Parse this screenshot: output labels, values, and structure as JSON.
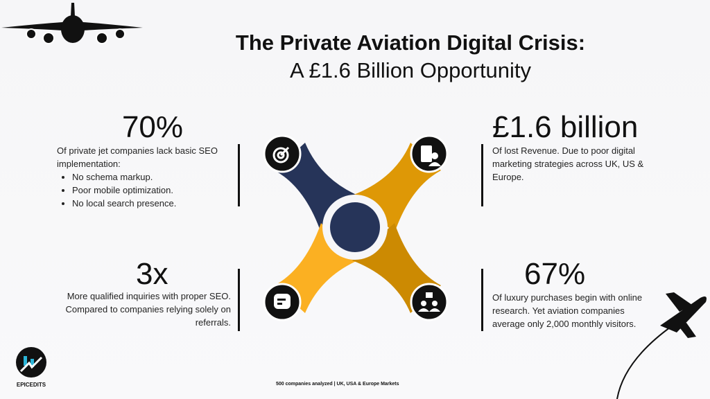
{
  "title": {
    "line1": "The Private Aviation Digital Crisis:",
    "line2": "A £1.6 Billion Opportunity"
  },
  "stats": [
    {
      "value": "70%",
      "text": "Of private jet companies lack basic SEO implementation:",
      "bullets": [
        "No schema markup.",
        "Poor mobile optimization.",
        "No local search presence."
      ],
      "icon": "target-icon"
    },
    {
      "value": "£1.6 billion",
      "text": "Of lost Revenue. Due to poor digital marketing strategies across UK, US & Europe.",
      "icon": "building-person-icon"
    },
    {
      "value": "3x",
      "text": "More qualified inquiries with proper SEO. Compared to companies relying solely on referrals.",
      "icon": "chat-icon"
    },
    {
      "value": "67%",
      "text": "Of luxury purchases begin with online research. Yet aviation companies average only 2,000 monthly visitors.",
      "icon": "team-icon"
    }
  ],
  "colors": {
    "navy": "#263459",
    "orange": "#de9806",
    "yellow": "#fbb022",
    "gold": "#cc8a02"
  },
  "logo": {
    "name": "EPICEDITS"
  },
  "footer": "500 companies analyzed | UK, USA & Europe Markets"
}
